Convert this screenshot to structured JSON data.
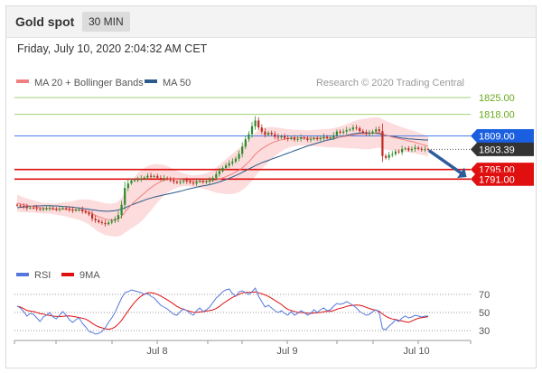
{
  "header": {
    "title": "Gold spot",
    "timeframe": "30 MIN"
  },
  "datetime": "Friday, July 10, 2020 2:04:32 AM CET",
  "legend": {
    "items": [
      {
        "label": "MA 20 + Bollinger Bands",
        "color": "#f08080"
      },
      {
        "label": "MA 50",
        "color": "#2c5a8a"
      }
    ],
    "credit": "Research © 2020 Trading Central"
  },
  "levels": [
    {
      "value": 1825.0,
      "label": "1825.00",
      "color": "#6aaa1e",
      "kind": "resistance-light",
      "dir": "up"
    },
    {
      "value": 1818.0,
      "label": "1818.00",
      "color": "#6aaa1e",
      "kind": "resistance-light",
      "dir": "up"
    },
    {
      "value": 1809.0,
      "label": "1809.00",
      "color": "#1a5fe0",
      "kind": "pivot",
      "dir": "none"
    },
    {
      "value": 1803.39,
      "label": "1803.39",
      "color": "#333333",
      "kind": "last",
      "dir": "none"
    },
    {
      "value": 1795.0,
      "label": "1795.00",
      "color": "#e01010",
      "kind": "support",
      "dir": "down"
    },
    {
      "value": 1791.0,
      "label": "1791.00",
      "color": "#e01010",
      "kind": "support",
      "dir": "down"
    }
  ],
  "rsi_legend": [
    {
      "label": "RSI",
      "color": "#5577dd"
    },
    {
      "label": "9MA",
      "color": "#e01010"
    }
  ],
  "rsi_levels": [
    "70",
    "50",
    "30"
  ],
  "x_labels": [
    "Jul 8",
    "Jul 9",
    "Jul 10"
  ],
  "colors": {
    "up": "#2e8b2e",
    "down": "#c0281e",
    "bands": "#fbd6d6",
    "rsi": "#5577dd",
    "rsi_ma": "#e01010",
    "arrow": "#2d5c9c"
  },
  "chart_data": {
    "type": "candlestick",
    "ylim": [
      1764,
      1828
    ],
    "rsi_ylim": [
      20,
      80
    ],
    "close": [
      1780.0,
      1779.8,
      1779.4,
      1778.9,
      1779.1,
      1779.0,
      1778.6,
      1778.2,
      1778.6,
      1778.7,
      1778.9,
      1778.5,
      1778.3,
      1778.6,
      1778.9,
      1778.6,
      1778.2,
      1777.9,
      1778.1,
      1778.3,
      1777.6,
      1777.0,
      1776.3,
      1774.5,
      1773.8,
      1773.1,
      1772.7,
      1772.2,
      1772.9,
      1773.6,
      1774.3,
      1776.0,
      1780.3,
      1787.3,
      1789.2,
      1790.4,
      1790.5,
      1790.9,
      1791.3,
      1791.6,
      1792.4,
      1791.9,
      1792.3,
      1791.5,
      1791.1,
      1791.4,
      1791.0,
      1790.5,
      1789.9,
      1789.4,
      1789.9,
      1790.3,
      1790.0,
      1789.5,
      1789.1,
      1789.8,
      1790.2,
      1789.7,
      1790.0,
      1790.5,
      1791.5,
      1793.1,
      1794.3,
      1795.6,
      1796.7,
      1797.6,
      1798.3,
      1799.5,
      1801.5,
      1804.5,
      1807.6,
      1809.7,
      1813.0,
      1815.4,
      1812.5,
      1810.8,
      1809.5,
      1810.3,
      1809.7,
      1808.6,
      1808.3,
      1808.8,
      1808.1,
      1807.7,
      1808.3,
      1807.4,
      1807.7,
      1808.3,
      1807.9,
      1807.3,
      1807.6,
      1808.1,
      1807.6,
      1808.0,
      1808.6,
      1808.1,
      1808.3,
      1809.2,
      1810.8,
      1810.3,
      1810.8,
      1811.4,
      1811.7,
      1812.5,
      1812.2,
      1811.0,
      1810.5,
      1809.9,
      1810.1,
      1810.8,
      1811.7,
      1811.0,
      1800.6,
      1799.9,
      1801.1,
      1801.4,
      1802.5,
      1802.2,
      1803.5,
      1803.8,
      1803.1,
      1803.5,
      1804.1,
      1803.6,
      1803.2,
      1803.5,
      1803.4
    ],
    "ma20": [
      1781.0,
      1780.6,
      1780.3,
      1780.0,
      1779.8,
      1779.6,
      1779.3,
      1779.1,
      1778.9,
      1778.8,
      1778.8,
      1778.6,
      1778.5,
      1778.5,
      1778.5,
      1778.4,
      1778.3,
      1778.2,
      1778.2,
      1778.2,
      1778.0,
      1777.7,
      1777.3,
      1776.6,
      1775.9,
      1775.3,
      1774.8,
      1774.3,
      1774.1,
      1774.0,
      1774.0,
      1774.4,
      1775.4,
      1777.2,
      1778.8,
      1780.3,
      1781.6,
      1782.8,
      1784.0,
      1785.1,
      1786.4,
      1787.4,
      1788.4,
      1789.2,
      1789.9,
      1790.5,
      1790.8,
      1790.9,
      1791.0,
      1790.9,
      1790.8,
      1790.7,
      1790.5,
      1790.3,
      1790.1,
      1790.1,
      1790.0,
      1790.0,
      1790.0,
      1790.1,
      1790.3,
      1790.6,
      1791.0,
      1791.5,
      1792.0,
      1792.6,
      1793.2,
      1793.9,
      1794.7,
      1795.7,
      1796.9,
      1798.2,
      1799.7,
      1801.3,
      1802.6,
      1803.6,
      1804.5,
      1805.3,
      1806.0,
      1806.6,
      1807.0,
      1807.4,
      1807.7,
      1807.9,
      1808.1,
      1808.1,
      1808.2,
      1808.2,
      1808.2,
      1808.1,
      1808.1,
      1808.1,
      1808.1,
      1808.1,
      1808.1,
      1808.1,
      1808.1,
      1808.2,
      1808.4,
      1808.5,
      1808.7,
      1808.9,
      1809.1,
      1809.4,
      1809.6,
      1809.7,
      1809.8,
      1809.9,
      1810.0,
      1810.1,
      1810.3,
      1810.4,
      1809.8,
      1809.3,
      1808.9,
      1808.5,
      1808.2,
      1807.9,
      1807.6,
      1807.3,
      1806.9,
      1806.6,
      1806.3,
      1805.9,
      1805.5,
      1805.1,
      1804.7
    ],
    "ma50": [
      1779.1,
      1779.2,
      1779.4,
      1779.5,
      1779.6,
      1779.8,
      1779.8,
      1779.8,
      1779.9,
      1779.9,
      1779.9,
      1779.8,
      1779.8,
      1779.7,
      1779.6,
      1779.5,
      1779.4,
      1779.3,
      1779.1,
      1779.0,
      1778.8,
      1778.6,
      1778.4,
      1778.2,
      1778.0,
      1777.8,
      1777.7,
      1777.6,
      1777.6,
      1777.7,
      1777.8,
      1778.1,
      1778.5,
      1779.0,
      1779.6,
      1780.2,
      1780.7,
      1781.2,
      1781.7,
      1782.2,
      1782.7,
      1783.1,
      1783.5,
      1783.8,
      1784.1,
      1784.4,
      1784.7,
      1785.0,
      1785.3,
      1785.6,
      1785.9,
      1786.3,
      1786.7,
      1787.0,
      1787.3,
      1787.6,
      1787.9,
      1788.2,
      1788.4,
      1788.7,
      1789.0,
      1789.4,
      1789.8,
      1790.3,
      1790.8,
      1791.3,
      1791.9,
      1792.5,
      1793.1,
      1793.8,
      1794.5,
      1795.2,
      1795.9,
      1796.6,
      1797.2,
      1797.8,
      1798.3,
      1798.8,
      1799.3,
      1799.8,
      1800.3,
      1800.8,
      1801.3,
      1801.8,
      1802.3,
      1802.8,
      1803.3,
      1803.8,
      1804.3,
      1804.8,
      1805.2,
      1805.6,
      1806.0,
      1806.4,
      1806.8,
      1807.2,
      1807.5,
      1807.8,
      1808.2,
      1808.5,
      1808.9,
      1809.2,
      1809.5,
      1809.8,
      1810.0,
      1810.2,
      1810.3,
      1810.3,
      1810.2,
      1810.1,
      1810.0,
      1809.9,
      1809.6,
      1809.3,
      1809.0,
      1808.8,
      1808.6,
      1808.3,
      1808.1,
      1808.0,
      1807.8,
      1807.7,
      1807.6,
      1807.5,
      1807.4,
      1807.3,
      1807.3
    ],
    "band_width": [
      3.5,
      3.3,
      3.1,
      2.9,
      2.7,
      2.5,
      2.4,
      2.3,
      2.2,
      2.2,
      2.2,
      2.3,
      2.4,
      2.6,
      2.8,
      3.0,
      3.3,
      3.6,
      3.9,
      4.2,
      4.5,
      4.8,
      5.2,
      5.6,
      6.0,
      6.3,
      6.5,
      6.6,
      6.7,
      6.8,
      7.0,
      7.3,
      7.8,
      8.5,
      9.2,
      9.8,
      10.3,
      10.6,
      10.7,
      10.5,
      10.1,
      9.5,
      8.8,
      8.0,
      7.2,
      6.4,
      5.6,
      4.8,
      4.1,
      3.5,
      3.0,
      2.7,
      2.5,
      2.4,
      2.4,
      2.5,
      2.7,
      3.0,
      3.4,
      3.9,
      4.5,
      5.2,
      5.9,
      6.6,
      7.3,
      7.9,
      8.4,
      8.8,
      9.1,
      9.3,
      9.4,
      9.4,
      9.3,
      9.1,
      8.8,
      8.4,
      7.9,
      7.3,
      6.7,
      6.0,
      5.4,
      4.8,
      4.3,
      3.9,
      3.6,
      3.4,
      3.3,
      3.2,
      3.2,
      3.2,
      3.3,
      3.4,
      3.5,
      3.6,
      3.7,
      3.8,
      3.9,
      4.0,
      4.2,
      4.4,
      4.7,
      5.0,
      5.3,
      5.6,
      5.9,
      6.1,
      6.3,
      6.4,
      6.5,
      6.5,
      6.4,
      6.3,
      6.2,
      6.0,
      5.8,
      5.6,
      5.4,
      5.2,
      5.0,
      4.9,
      4.8,
      4.7,
      4.6,
      4.5,
      4.4,
      4.3,
      4.2
    ],
    "rsi": [
      57,
      55,
      51,
      46,
      49,
      48,
      44,
      40,
      45,
      47,
      50,
      45,
      43,
      47,
      51,
      47,
      42,
      39,
      42,
      44,
      38,
      34,
      29,
      28,
      26,
      27,
      29,
      33,
      39,
      44,
      50,
      58,
      66,
      72,
      73,
      75,
      74,
      73,
      72,
      70,
      71,
      68,
      66,
      62,
      58,
      56,
      54,
      51,
      48,
      47,
      51,
      54,
      52,
      49,
      47,
      52,
      55,
      51,
      53,
      56,
      61,
      66,
      69,
      73,
      75,
      76,
      71,
      68,
      73,
      74,
      72,
      70,
      73,
      77,
      68,
      62,
      56,
      58,
      55,
      52,
      50,
      52,
      49,
      47,
      51,
      47,
      49,
      52,
      50,
      47,
      49,
      53,
      50,
      53,
      55,
      52,
      53,
      57,
      60,
      59,
      60,
      62,
      60,
      58,
      55,
      51,
      49,
      47,
      48,
      51,
      53,
      50,
      32,
      31,
      35,
      38,
      42,
      40,
      44,
      46,
      44,
      45,
      47,
      46,
      45,
      46,
      46
    ]
  }
}
